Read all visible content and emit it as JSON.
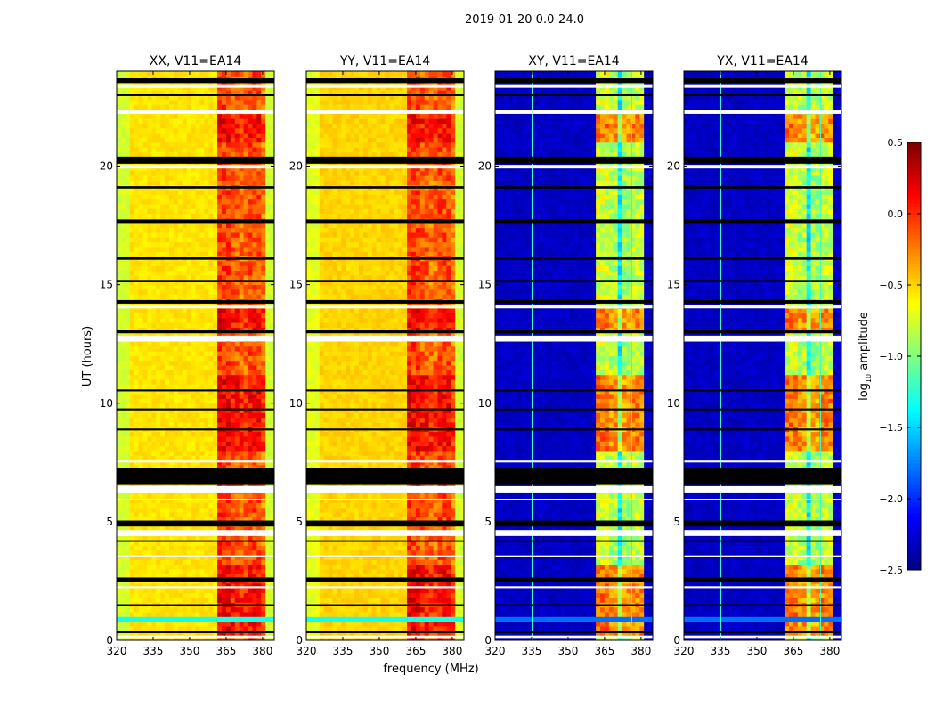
{
  "chart_data": {
    "type": "heatmap",
    "title": "2019-01-20 0.0-24.0",
    "xlabel": "frequency (MHz)",
    "ylabel": "UT (hours)",
    "xlim": [
      320,
      384.8
    ],
    "ylim": [
      0,
      24
    ],
    "xticks": [
      "320",
      "335",
      "350",
      "365",
      "380"
    ],
    "yticks": [
      "0",
      "5",
      "10",
      "15",
      "20"
    ],
    "colorbar": {
      "label_main": "log",
      "label_sub": "10",
      "label_rest": " amplitude",
      "range": [
        -2.5,
        0.5
      ],
      "ticks": [
        "0.5",
        "0.0",
        "−0.5",
        "−1.0",
        "−1.5",
        "−2.0",
        "−2.5"
      ],
      "tick_values": [
        0.5,
        0.0,
        -0.5,
        -1.0,
        -1.5,
        -2.0,
        -2.5
      ],
      "colormap": "jet"
    },
    "active_periods_hours": [
      [
        8.0,
        11.2
      ],
      [
        13.0,
        14.0
      ],
      [
        21.0,
        22.2
      ],
      [
        0.2,
        3.2
      ]
    ],
    "flagged_rows": [
      {
        "from": 23.5,
        "to": 23.7,
        "color": "black"
      },
      {
        "from": 23.3,
        "to": 23.45,
        "color": "white"
      },
      {
        "from": 22.95,
        "to": 23.05,
        "color": "black"
      },
      {
        "from": 22.2,
        "to": 22.35,
        "color": "white"
      },
      {
        "from": 20.1,
        "to": 20.4,
        "color": "black"
      },
      {
        "from": 19.9,
        "to": 20.05,
        "color": "white"
      },
      {
        "from": 19.05,
        "to": 19.15,
        "color": "black"
      },
      {
        "from": 17.6,
        "to": 17.75,
        "color": "black"
      },
      {
        "from": 16.05,
        "to": 16.15,
        "color": "black"
      },
      {
        "from": 15.1,
        "to": 15.2,
        "color": "black"
      },
      {
        "from": 14.2,
        "to": 14.35,
        "color": "black"
      },
      {
        "from": 14.0,
        "to": 14.15,
        "color": "white"
      },
      {
        "from": 12.95,
        "to": 13.1,
        "color": "black"
      },
      {
        "from": 12.6,
        "to": 12.85,
        "color": "white"
      },
      {
        "from": 10.5,
        "to": 10.58,
        "color": "black"
      },
      {
        "from": 9.7,
        "to": 9.78,
        "color": "black"
      },
      {
        "from": 8.85,
        "to": 8.93,
        "color": "black"
      },
      {
        "from": 7.5,
        "to": 7.58,
        "color": "white"
      },
      {
        "from": 6.55,
        "to": 7.25,
        "color": "black"
      },
      {
        "from": 6.2,
        "to": 6.5,
        "color": "white"
      },
      {
        "from": 5.9,
        "to": 5.97,
        "color": "white"
      },
      {
        "from": 4.8,
        "to": 5.05,
        "color": "black"
      },
      {
        "from": 4.4,
        "to": 4.65,
        "color": "white"
      },
      {
        "from": 4.15,
        "to": 4.22,
        "color": "black"
      },
      {
        "from": 3.5,
        "to": 3.58,
        "color": "white"
      },
      {
        "from": 2.45,
        "to": 2.65,
        "color": "black"
      },
      {
        "from": 2.2,
        "to": 2.28,
        "color": "white"
      },
      {
        "from": 1.45,
        "to": 1.52,
        "color": "black"
      },
      {
        "from": 0.3,
        "to": 0.38,
        "color": "black"
      },
      {
        "from": 0.1,
        "to": 0.2,
        "color": "white"
      }
    ],
    "panels": [
      {
        "title": "XX, V11=EA14",
        "profile": [
          [
            320,
            325,
            -0.75
          ],
          [
            325,
            362,
            -0.55
          ],
          [
            362,
            366,
            -0.05
          ],
          [
            366,
            370,
            -0.15
          ],
          [
            370,
            374,
            -0.2
          ],
          [
            374,
            379,
            -0.1
          ],
          [
            379,
            382,
            -0.25
          ],
          [
            382,
            384.8,
            -0.75
          ]
        ],
        "active_boost": 0.35,
        "rfi_row_hours": 0.85,
        "rfi_value": -1.3,
        "rfi_columns": []
      },
      {
        "title": "YY, V11=EA14",
        "profile": [
          [
            320,
            325,
            -0.7
          ],
          [
            325,
            362,
            -0.5
          ],
          [
            362,
            366,
            -0.05
          ],
          [
            366,
            370,
            -0.15
          ],
          [
            370,
            374,
            -0.2
          ],
          [
            374,
            379,
            -0.1
          ],
          [
            379,
            382,
            -0.25
          ],
          [
            382,
            384.8,
            -0.75
          ]
        ],
        "active_boost": 0.35,
        "rfi_row_hours": 0.85,
        "rfi_value": -1.3,
        "rfi_columns": []
      },
      {
        "title": "XY, V11=EA14",
        "profile": [
          [
            320,
            362,
            -2.3
          ],
          [
            362,
            366,
            -0.75
          ],
          [
            366,
            367,
            -1.6
          ],
          [
            367,
            371,
            -0.85
          ],
          [
            371,
            372,
            -1.4
          ],
          [
            372,
            375,
            -0.9
          ],
          [
            375,
            376,
            -1.4
          ],
          [
            376,
            381,
            -0.8
          ],
          [
            381,
            384.8,
            -2.3
          ]
        ],
        "active_boost": 0.9,
        "rfi_row_hours": 0.85,
        "rfi_value": -1.8,
        "rfi_columns": [
          335,
          376
        ]
      },
      {
        "title": "YX, V11=EA14",
        "profile": [
          [
            320,
            362,
            -2.3
          ],
          [
            362,
            366,
            -0.75
          ],
          [
            366,
            367,
            -1.6
          ],
          [
            367,
            371,
            -0.85
          ],
          [
            371,
            372,
            -1.4
          ],
          [
            372,
            375,
            -0.9
          ],
          [
            375,
            376,
            -1.4
          ],
          [
            376,
            381,
            -0.8
          ],
          [
            381,
            384.8,
            -2.3
          ]
        ],
        "active_boost": 0.9,
        "rfi_row_hours": 0.85,
        "rfi_value": -1.8,
        "rfi_columns": [
          335,
          376
        ]
      }
    ]
  }
}
